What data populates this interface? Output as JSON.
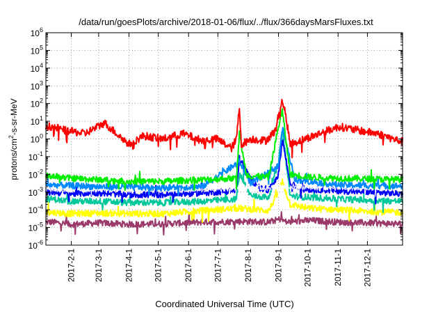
{
  "chart_data": {
    "type": "line",
    "title": "/data/run/goesPlots/archive/2018-01-06/flux/../flux/366daysMarsFluxes.txt",
    "xlabel": "Coordinated Universal Time (UTC)",
    "ylabel": {
      "pre": "protons/cm",
      "sup": "2",
      "post": "-s-sr-MeV"
    },
    "x_range": [
      "2017-01-06",
      "2018-01-06"
    ],
    "x_ticks": [
      "2017-2-1",
      "2017-3-1",
      "2017-4-1",
      "2017-5-1",
      "2017-6-1",
      "2017-7-1",
      "2017-8-1",
      "2017-9-1",
      "2017-10-1",
      "2017-11-1",
      "2017-12-1"
    ],
    "y_scale": "log",
    "ylim": [
      1e-06,
      1000000.0
    ],
    "y_ticks": [
      {
        "base": "10",
        "exp": "-6"
      },
      {
        "base": "10",
        "exp": "-5"
      },
      {
        "base": "10",
        "exp": "-4"
      },
      {
        "base": "10",
        "exp": "-3"
      },
      {
        "base": "10",
        "exp": "-2"
      },
      {
        "base": "10",
        "exp": "-1"
      },
      {
        "base": "10",
        "exp": "0"
      },
      {
        "base": "10",
        "exp": "1"
      },
      {
        "base": "10",
        "exp": "2"
      },
      {
        "base": "10",
        "exp": "3"
      },
      {
        "base": "10",
        "exp": "4"
      },
      {
        "base": "10",
        "exp": "5"
      },
      {
        "base": "10",
        "exp": "6"
      }
    ],
    "grid": true,
    "series": [
      {
        "color": "#9b3a6a",
        "baseline": 2e-05,
        "values": [
          [
            7,
            2e-05
          ],
          [
            25,
            1.5e-05
          ],
          [
            55,
            1.8e-05
          ],
          [
            85,
            1.5e-05
          ],
          [
            120,
            1.6e-05
          ],
          [
            160,
            2e-05
          ],
          [
            200,
            2.2e-05
          ],
          [
            228,
            2e-05
          ],
          [
            240,
            3e-05
          ],
          [
            246,
            2e-05
          ],
          [
            270,
            2.5e-05
          ],
          [
            300,
            2e-05
          ],
          [
            330,
            1.8e-05
          ],
          [
            365,
            1.6e-05
          ]
        ]
      },
      {
        "color": "#ffff00",
        "baseline": 8e-05,
        "values": [
          [
            7,
            7e-05
          ],
          [
            25,
            6e-05
          ],
          [
            55,
            6.5e-05
          ],
          [
            85,
            6e-05
          ],
          [
            120,
            6e-05
          ],
          [
            160,
            9e-05
          ],
          [
            198,
            0.00012
          ],
          [
            228,
            9e-05
          ],
          [
            238,
            0.001
          ],
          [
            242,
            0.004
          ],
          [
            250,
            0.0002
          ],
          [
            270,
            0.00012
          ],
          [
            300,
            0.0001
          ],
          [
            330,
            8e-05
          ],
          [
            365,
            7e-05
          ]
        ]
      },
      {
        "color": "#00c89a",
        "baseline": 0.0003,
        "values": [
          [
            7,
            0.0004
          ],
          [
            25,
            0.0003
          ],
          [
            55,
            0.0003
          ],
          [
            85,
            0.00025
          ],
          [
            120,
            0.00025
          ],
          [
            160,
            0.0003
          ],
          [
            195,
            0.0004
          ],
          [
            198,
            0.01
          ],
          [
            210,
            0.0006
          ],
          [
            228,
            0.0005
          ],
          [
            238,
            0.05
          ],
          [
            242,
            3
          ],
          [
            250,
            0.0006
          ],
          [
            270,
            0.0005
          ],
          [
            300,
            0.0004
          ],
          [
            330,
            0.00035
          ],
          [
            365,
            0.0003
          ]
        ]
      },
      {
        "color": "#0000ff",
        "baseline": 0.0008,
        "values": [
          [
            7,
            0.001
          ],
          [
            25,
            0.0008
          ],
          [
            55,
            0.0009
          ],
          [
            85,
            0.0007
          ],
          [
            120,
            0.0007
          ],
          [
            160,
            0.0009
          ],
          [
            195,
            0.0012
          ],
          [
            198,
            0.08
          ],
          [
            210,
            0.005
          ],
          [
            220,
            0.0015
          ],
          [
            228,
            0.0012
          ],
          [
            238,
            0.01
          ],
          [
            242,
            1
          ],
          [
            250,
            0.003
          ],
          [
            262,
            0.0015
          ],
          [
            300,
            0.0012
          ],
          [
            330,
            0.001
          ],
          [
            365,
            0.0008
          ]
        ]
      },
      {
        "color": "#ffffff",
        "baseline": 0.0015,
        "values": [
          [
            7,
            0.0015
          ],
          [
            55,
            0.0014
          ],
          [
            120,
            0.0013
          ],
          [
            180,
            0.0016
          ],
          [
            228,
            0.0018
          ],
          [
            250,
            0.002
          ],
          [
            300,
            0.0018
          ],
          [
            365,
            0.0016
          ]
        ]
      },
      {
        "color": "#0088ff",
        "baseline": 0.002,
        "values": [
          [
            7,
            0.0025
          ],
          [
            55,
            0.002
          ],
          [
            120,
            0.0018
          ],
          [
            160,
            0.002
          ],
          [
            198,
            0.05
          ],
          [
            210,
            0.003
          ],
          [
            238,
            0.03
          ],
          [
            242,
            4
          ],
          [
            255,
            0.005
          ],
          [
            300,
            0.0025
          ],
          [
            365,
            0.0022
          ]
        ]
      },
      {
        "color": "#00ee00",
        "baseline": 0.005,
        "values": [
          [
            7,
            0.008
          ],
          [
            25,
            0.006
          ],
          [
            55,
            0.005
          ],
          [
            85,
            0.004
          ],
          [
            120,
            0.004
          ],
          [
            160,
            0.005
          ],
          [
            195,
            0.006
          ],
          [
            198,
            2
          ],
          [
            205,
            0.01
          ],
          [
            210,
            0.008
          ],
          [
            228,
            0.007
          ],
          [
            238,
            5
          ],
          [
            242,
            40
          ],
          [
            250,
            0.01
          ],
          [
            270,
            0.007
          ],
          [
            300,
            0.006
          ],
          [
            365,
            0.005
          ]
        ]
      },
      {
        "color": "#ff0000",
        "baseline": 2,
        "values": [
          [
            7,
            5
          ],
          [
            20,
            3
          ],
          [
            40,
            2
          ],
          [
            60,
            8
          ],
          [
            75,
            1.5
          ],
          [
            85,
            0.5
          ],
          [
            100,
            1.5
          ],
          [
            120,
            1
          ],
          [
            140,
            2
          ],
          [
            160,
            0.8
          ],
          [
            175,
            1
          ],
          [
            190,
            0.3
          ],
          [
            195,
            1
          ],
          [
            198,
            60
          ],
          [
            200,
            0.5
          ],
          [
            210,
            1
          ],
          [
            225,
            0.8
          ],
          [
            235,
            3
          ],
          [
            238,
            20
          ],
          [
            241,
            150
          ],
          [
            244,
            60
          ],
          [
            250,
            0.5
          ],
          [
            265,
            1
          ],
          [
            280,
            2
          ],
          [
            300,
            5
          ],
          [
            320,
            3
          ],
          [
            340,
            2
          ],
          [
            355,
            1
          ],
          [
            365,
            0.7
          ]
        ]
      }
    ]
  }
}
